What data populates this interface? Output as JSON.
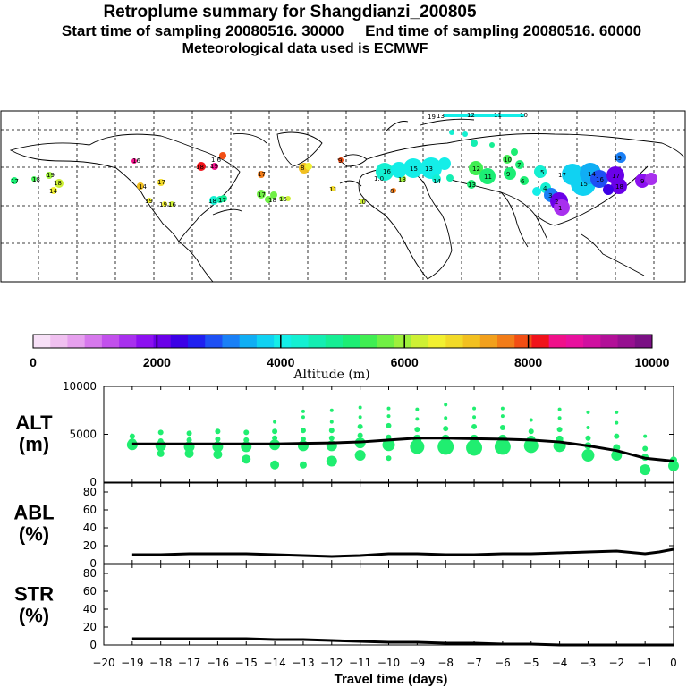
{
  "header": {
    "title": "Retroplume summary for Shangdianzi_200805",
    "sampling": "Start time of sampling 20080516. 30000     End time of sampling 20080516. 60000",
    "met": "Meteorological data used is ECMWF"
  },
  "colorbar": {
    "label": "Altitude (m)",
    "tick_labels": [
      "0",
      "2000",
      "4000",
      "6000",
      "8000",
      "10000"
    ],
    "colors": [
      "#f7e0f7",
      "#f0c0f0",
      "#e6a0ee",
      "#d678ec",
      "#c250ec",
      "#a830ee",
      "#8c10f0",
      "#6a00e8",
      "#3c00e6",
      "#2020f0",
      "#1e50f4",
      "#1a80f6",
      "#10aef4",
      "#10d2f2",
      "#14eee8",
      "#14f0d2",
      "#14eeb2",
      "#16ee94",
      "#1cee74",
      "#40ee52",
      "#70f044",
      "#9ef03c",
      "#cef034",
      "#f2f030",
      "#f2da28",
      "#f2c020",
      "#f2a01c",
      "#f27c18",
      "#f24e14",
      "#f0121a",
      "#f0108a",
      "#e8109e",
      "#d010a0",
      "#b21098",
      "#961090",
      "#7a1084"
    ]
  },
  "map": {
    "labels": [
      "17",
      "18",
      "19",
      "18",
      "14",
      "14",
      "17",
      "19",
      "19",
      "16",
      "18",
      "17",
      "1.6",
      "17",
      "18",
      "15",
      "17",
      "16",
      "18",
      "19",
      "1.0",
      "8",
      "9",
      "11",
      "10",
      "8",
      "13",
      "16",
      "15",
      "13",
      "14",
      "13",
      "12",
      "11",
      "10",
      "9",
      "7",
      "6",
      "5",
      "4",
      "3",
      "2",
      "1",
      "19",
      "17",
      "15",
      "14",
      "16",
      "17",
      "18",
      "19",
      "13",
      "12",
      "11",
      "10",
      "9"
    ]
  },
  "chart_data": [
    {
      "type": "line",
      "name": "ALT",
      "ylabel_top": "ALT",
      "ylabel_bottom": "(m)",
      "ylim": [
        0,
        10000
      ],
      "yticks": [
        "0",
        "5000",
        "10000"
      ],
      "x": [
        -19,
        -18,
        -17,
        -16,
        -15,
        -14,
        -13,
        -12,
        -11,
        -10,
        -9,
        -8,
        -7,
        -6,
        -5,
        -4,
        -3,
        -2,
        -1,
        0
      ],
      "line": [
        4000,
        4000,
        4000,
        4000,
        4000,
        4000,
        4050,
        4100,
        4200,
        4400,
        4600,
        4600,
        4550,
        4500,
        4400,
        4200,
        3800,
        3300,
        2500,
        2200
      ],
      "scatter": [
        {
          "x": -19,
          "y": [
            3900,
            4100,
            4800
          ],
          "s": [
            6,
            5,
            3
          ]
        },
        {
          "x": -18,
          "y": [
            3000,
            3800,
            4300,
            5200
          ],
          "s": [
            4,
            6,
            3,
            3
          ]
        },
        {
          "x": -17,
          "y": [
            3000,
            3700,
            4400,
            5100
          ],
          "s": [
            5,
            6,
            3,
            3
          ]
        },
        {
          "x": -16,
          "y": [
            2900,
            3700,
            4500,
            5300
          ],
          "s": [
            5,
            6,
            3,
            3
          ]
        },
        {
          "x": -15,
          "y": [
            2400,
            3700,
            4400,
            5200
          ],
          "s": [
            5,
            6,
            3,
            3
          ]
        },
        {
          "x": -14,
          "y": [
            1800,
            3900,
            4600,
            5300,
            6300
          ],
          "s": [
            5,
            6,
            3,
            3,
            2
          ]
        },
        {
          "x": -13,
          "y": [
            1800,
            3800,
            4500,
            5400,
            6800,
            7400
          ],
          "s": [
            4,
            6,
            3,
            3,
            2,
            2
          ]
        },
        {
          "x": -12,
          "y": [
            2200,
            3800,
            4600,
            5400,
            6300,
            7500
          ],
          "s": [
            6,
            6,
            3,
            3,
            2,
            2
          ]
        },
        {
          "x": -11,
          "y": [
            2800,
            4100,
            4900,
            5800,
            6800,
            7800
          ],
          "s": [
            6,
            6,
            3,
            3,
            2,
            2
          ]
        },
        {
          "x": -10,
          "y": [
            2500,
            3900,
            4700,
            5900,
            6900,
            7700
          ],
          "s": [
            3,
            7,
            3,
            3,
            2,
            2
          ]
        },
        {
          "x": -9,
          "y": [
            3700,
            4500,
            5500,
            6600,
            7600
          ],
          "s": [
            8,
            5,
            3,
            2,
            2
          ]
        },
        {
          "x": -8,
          "y": [
            3700,
            4500,
            5600,
            6700,
            8100
          ],
          "s": [
            9,
            5,
            3,
            2,
            2
          ]
        },
        {
          "x": -7,
          "y": [
            3600,
            4500,
            5800,
            6800,
            7700
          ],
          "s": [
            9,
            5,
            3,
            2,
            2
          ]
        },
        {
          "x": -6,
          "y": [
            3700,
            4500,
            5700,
            6900,
            7700
          ],
          "s": [
            9,
            5,
            3,
            2,
            2
          ]
        },
        {
          "x": -5,
          "y": [
            3800,
            4400,
            5300,
            6500
          ],
          "s": [
            8,
            5,
            3,
            2
          ]
        },
        {
          "x": -4,
          "y": [
            3800,
            4500,
            5500,
            6700,
            7600
          ],
          "s": [
            7,
            4,
            3,
            2,
            2
          ]
        },
        {
          "x": -3,
          "y": [
            2800,
            3800,
            4600,
            5700,
            7300
          ],
          "s": [
            7,
            4,
            3,
            2,
            2
          ]
        },
        {
          "x": -2,
          "y": [
            2800,
            3600,
            4800,
            6200,
            7300
          ],
          "s": [
            6,
            4,
            3,
            2,
            2
          ]
        },
        {
          "x": -1,
          "y": [
            1300,
            2600,
            3500,
            4800
          ],
          "s": [
            6,
            4,
            3,
            2
          ]
        },
        {
          "x": 0,
          "y": [
            1700,
            2300
          ],
          "s": [
            6,
            4
          ]
        }
      ]
    },
    {
      "type": "line",
      "name": "ABL",
      "ylabel_top": "ABL",
      "ylabel_bottom": "(%)",
      "ylim": [
        0,
        90
      ],
      "yticks": [
        "0",
        "20",
        "40",
        "60",
        "80"
      ],
      "x": [
        -19,
        -18,
        -17,
        -16,
        -15,
        -14,
        -13,
        -12,
        -11,
        -10,
        -9,
        -8,
        -7,
        -6,
        -5,
        -4,
        -3,
        -2,
        -1,
        -0.5,
        0
      ],
      "values": [
        10,
        10,
        11,
        11,
        11,
        10,
        9,
        8,
        9,
        11,
        11,
        10,
        10,
        11,
        11,
        12,
        13,
        14,
        11,
        13,
        16
      ]
    },
    {
      "type": "line",
      "name": "STR",
      "ylabel_top": "STR",
      "ylabel_bottom": "(%)",
      "ylim": [
        0,
        90
      ],
      "yticks": [
        "0",
        "20",
        "40",
        "60",
        "80"
      ],
      "x": [
        -19,
        -18,
        -17,
        -16,
        -15,
        -14,
        -13,
        -12,
        -11,
        -10,
        -9,
        -8,
        -7,
        -6,
        -5,
        -4,
        -3,
        -2,
        -1,
        0
      ],
      "values": [
        7,
        7,
        7,
        7,
        7,
        6,
        6,
        5,
        4,
        3,
        3,
        2,
        2,
        1,
        1,
        0,
        0,
        0,
        0,
        0
      ],
      "xlabel": "Travel time (days)",
      "xticks": [
        "−20",
        "−19",
        "−18",
        "−17",
        "−16",
        "−15",
        "−14",
        "−13",
        "−12",
        "−11",
        "−10",
        "−9",
        "−8",
        "−7",
        "−6",
        "−5",
        "−4",
        "−3",
        "−2",
        "−1",
        "0"
      ]
    }
  ]
}
